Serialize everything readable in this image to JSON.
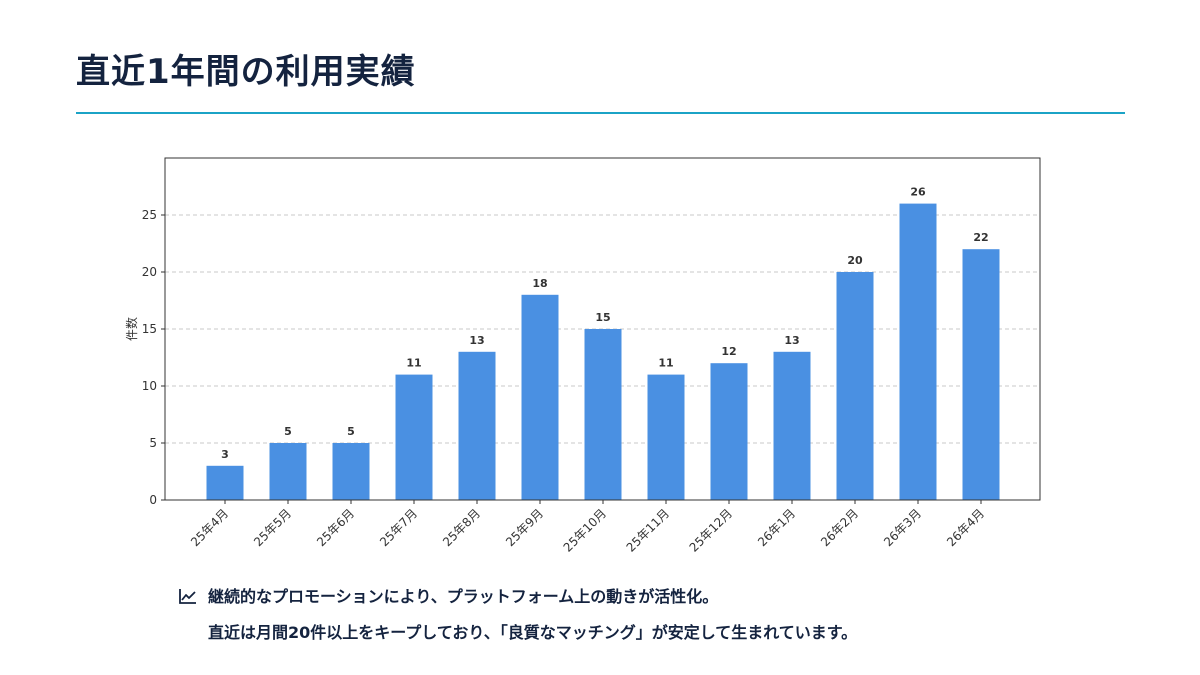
{
  "slide": {
    "title": "直近1年間の利用実績"
  },
  "chart_data": {
    "type": "bar",
    "title": "",
    "xlabel": "",
    "ylabel": "件数",
    "categories": [
      "25年4月",
      "25年5月",
      "25年6月",
      "25年7月",
      "25年8月",
      "25年9月",
      "25年10月",
      "25年11月",
      "25年12月",
      "26年1月",
      "26年2月",
      "26年3月",
      "26年4月"
    ],
    "values": [
      3,
      5,
      5,
      11,
      13,
      18,
      15,
      11,
      12,
      13,
      20,
      26,
      22
    ],
    "ylim": [
      0,
      30
    ],
    "yticks": [
      0,
      5,
      10,
      15,
      20,
      25
    ],
    "grid": "horizontal-dashed",
    "bar_color": "#4a90e2",
    "data_labels": true
  },
  "notes": {
    "icon": "trend-chart-icon",
    "line1": "継続的なプロモーションにより、プラットフォーム上の動きが活性化。",
    "line2": "直近は月間20件以上をキープしており、「良質なマッチング」が安定して生まれています。"
  },
  "colors": {
    "title": "#14233f",
    "accent_rule": "#1ba3c6",
    "bar": "#4a90e2"
  }
}
